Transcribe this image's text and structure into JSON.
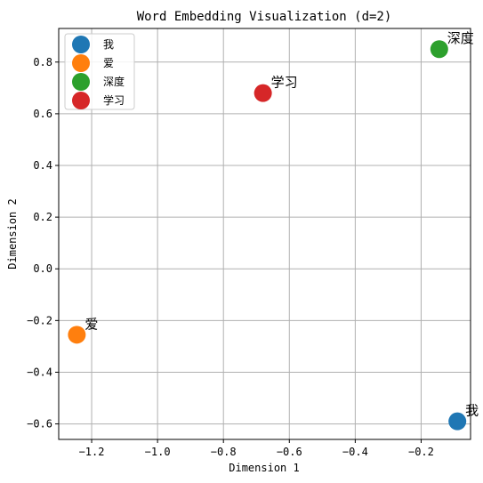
{
  "chart_data": {
    "type": "scatter",
    "title": "Word Embedding Visualization (d=2)",
    "xlabel": "Dimension 1",
    "ylabel": "Dimension 2",
    "xlim": [
      -1.3,
      -0.05
    ],
    "ylim": [
      -0.66,
      0.93
    ],
    "xticks": [
      -1.2,
      -1.0,
      -0.8,
      -0.6,
      -0.4,
      -0.2
    ],
    "xtick_labels": [
      "−1.2",
      "−1.0",
      "−0.8",
      "−0.6",
      "−0.4",
      "−0.2"
    ],
    "yticks": [
      -0.6,
      -0.4,
      -0.2,
      0.0,
      0.2,
      0.4,
      0.6,
      0.8
    ],
    "ytick_labels": [
      "−0.6",
      "−0.4",
      "−0.2",
      "0.0",
      "0.2",
      "0.4",
      "0.6",
      "0.8"
    ],
    "grid": true,
    "legend_position": "top-left",
    "series": [
      {
        "name": "我",
        "color": "#1f77b4",
        "x": [
          -0.09
        ],
        "y": [
          -0.59
        ],
        "label": "我"
      },
      {
        "name": "爱",
        "color": "#ff7f0e",
        "x": [
          -1.245
        ],
        "y": [
          -0.255
        ],
        "label": "爱"
      },
      {
        "name": "深度",
        "color": "#2ca02c",
        "x": [
          -0.145
        ],
        "y": [
          0.85
        ],
        "label": "深度"
      },
      {
        "name": "学习",
        "color": "#d62728",
        "x": [
          -0.68
        ],
        "y": [
          0.68
        ],
        "label": "学习"
      }
    ]
  }
}
